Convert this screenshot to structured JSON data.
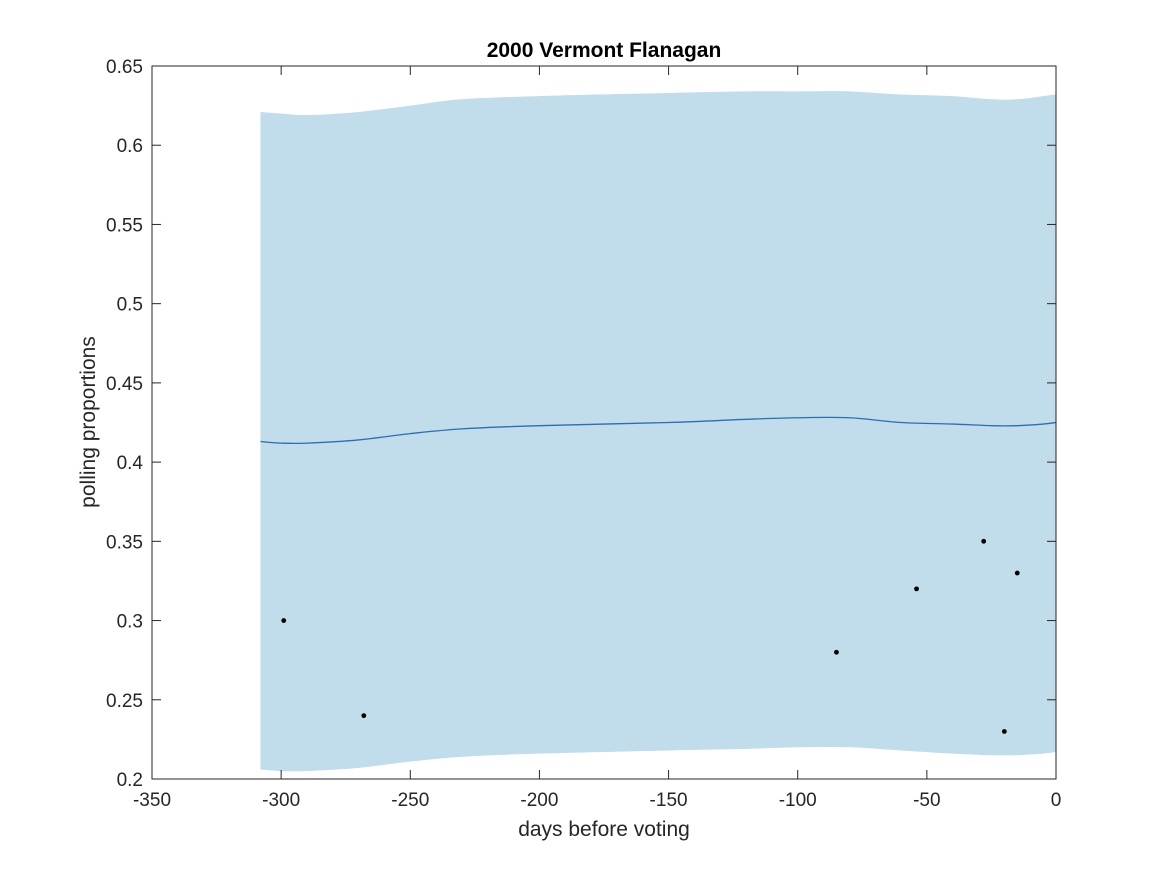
{
  "chart_data": {
    "type": "line",
    "title": "2000 Vermont Flanagan",
    "xlabel": "days before voting",
    "ylabel": "polling proportions",
    "xlim": [
      -350,
      0
    ],
    "ylim": [
      0.2,
      0.65
    ],
    "xticks": [
      -350,
      -300,
      -250,
      -200,
      -150,
      -100,
      -50,
      0
    ],
    "yticks": [
      0.2,
      0.25,
      0.3,
      0.35,
      0.4,
      0.45,
      0.5,
      0.55,
      0.6,
      0.65
    ],
    "xtick_labels": [
      "-350",
      "-300",
      "-250",
      "-200",
      "-150",
      "-100",
      "-50",
      "0"
    ],
    "ytick_labels": [
      "0.2",
      "0.25",
      "0.3",
      "0.35",
      "0.4",
      "0.45",
      "0.5",
      "0.55",
      "0.6",
      "0.65"
    ],
    "grid": false,
    "colors": {
      "band": "#c1dcea",
      "line": "#2b6fb0",
      "points": "#000000",
      "axis": "#262626"
    },
    "band": {
      "x": [
        -308,
        -300,
        -290,
        -270,
        -250,
        -230,
        -200,
        -150,
        -120,
        -100,
        -80,
        -60,
        -40,
        -25,
        -15,
        -5,
        0
      ],
      "upper": [
        0.621,
        0.62,
        0.619,
        0.621,
        0.625,
        0.629,
        0.631,
        0.633,
        0.634,
        0.634,
        0.634,
        0.632,
        0.631,
        0.629,
        0.629,
        0.631,
        0.632
      ],
      "lower": [
        0.206,
        0.205,
        0.205,
        0.207,
        0.211,
        0.214,
        0.216,
        0.218,
        0.219,
        0.22,
        0.22,
        0.218,
        0.216,
        0.215,
        0.215,
        0.216,
        0.217
      ]
    },
    "series": [
      {
        "x": [
          -308,
          -300,
          -290,
          -270,
          -250,
          -230,
          -200,
          -150,
          -120,
          -100,
          -80,
          -60,
          -40,
          -25,
          -15,
          -5,
          0
        ],
        "values": [
          0.413,
          0.412,
          0.412,
          0.414,
          0.418,
          0.421,
          0.423,
          0.425,
          0.427,
          0.428,
          0.428,
          0.425,
          0.424,
          0.423,
          0.423,
          0.424,
          0.425
        ]
      }
    ],
    "points": [
      {
        "x": -299,
        "y": 0.3
      },
      {
        "x": -268,
        "y": 0.24
      },
      {
        "x": -85,
        "y": 0.28
      },
      {
        "x": -54,
        "y": 0.32
      },
      {
        "x": -28,
        "y": 0.35
      },
      {
        "x": -20,
        "y": 0.23
      },
      {
        "x": -15,
        "y": 0.33
      }
    ]
  }
}
